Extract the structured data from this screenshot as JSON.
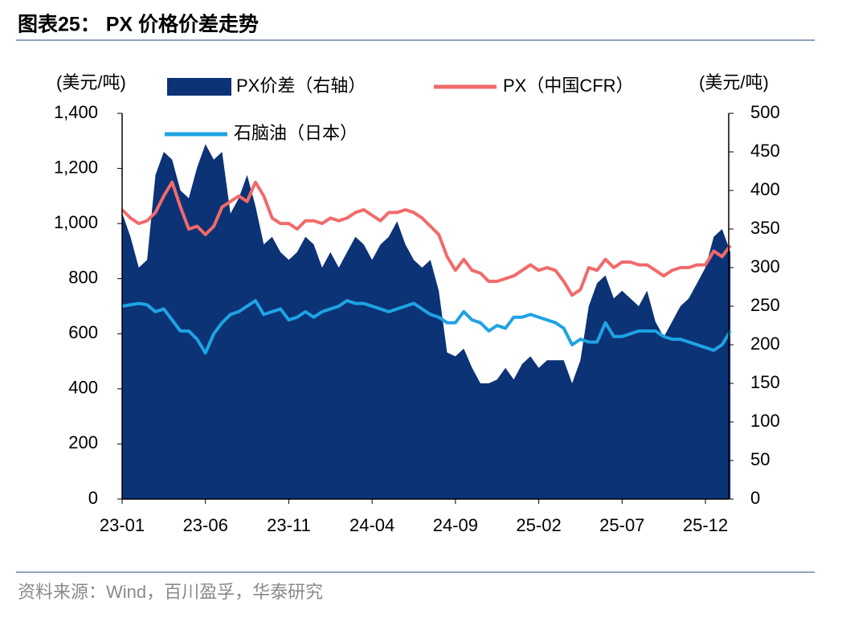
{
  "chart_data": {
    "type": "combo",
    "title": "图表25：  PX 价格价差走势",
    "source": "资料来源：Wind，百川盈孚，华泰研究",
    "y_axis_label": "(美元/吨)",
    "y2_axis_label": "(美元/吨)",
    "legend": "top",
    "grid": false,
    "categories": [
      "23-01",
      null,
      null,
      null,
      null,
      null,
      null,
      null,
      null,
      null,
      "23-06",
      null,
      null,
      null,
      null,
      null,
      null,
      null,
      null,
      null,
      "23-11",
      null,
      null,
      null,
      null,
      null,
      null,
      null,
      null,
      null,
      "24-04",
      null,
      null,
      null,
      null,
      null,
      null,
      null,
      null,
      null,
      "24-09",
      null,
      null,
      null,
      null,
      null,
      null,
      null,
      null,
      null,
      "25-02",
      null,
      null,
      null,
      null,
      null,
      null,
      null,
      null,
      null,
      "25-07",
      null,
      null,
      null,
      null,
      null,
      null,
      null,
      null,
      null,
      "25-12",
      null,
      null,
      null
    ],
    "ylim": [
      0,
      1400
    ],
    "yticks": [
      0,
      200,
      400,
      600,
      800,
      {
        "value": 1000,
        "label": "1,000"
      },
      {
        "value": 1200,
        "label": "1,200"
      },
      {
        "value": 1400,
        "label": "1,400"
      }
    ],
    "y2lim": [
      0,
      500
    ],
    "y2ticks": [
      0,
      50,
      100,
      150,
      200,
      250,
      300,
      350,
      400,
      450,
      500
    ],
    "series": [
      {
        "name": "PX价差（右轴）",
        "type": "area",
        "axis": "y2",
        "color": "#0b3376",
        "values": [
          371,
          340,
          300,
          310,
          420,
          450,
          440,
          400,
          390,
          430,
          460,
          440,
          450,
          370,
          390,
          420,
          380,
          330,
          340,
          320,
          310,
          320,
          340,
          330,
          300,
          320,
          300,
          320,
          340,
          330,
          310,
          330,
          340,
          360,
          330,
          310,
          300,
          310,
          270,
          190,
          185,
          195,
          170,
          150,
          150,
          155,
          170,
          155,
          175,
          185,
          170,
          180,
          180,
          180,
          150,
          180,
          250,
          280,
          290,
          260,
          270,
          260,
          250,
          270,
          230,
          210,
          230,
          250,
          260,
          280,
          300,
          340,
          350,
          320
        ]
      },
      {
        "name": "PX（中国CFR）",
        "type": "line",
        "color": "#f26a6a",
        "values": [
          1050,
          1020,
          1000,
          1010,
          1040,
          1100,
          1150,
          1060,
          980,
          990,
          960,
          990,
          1060,
          1080,
          1100,
          1080,
          1150,
          1100,
          1020,
          1000,
          1000,
          980,
          1010,
          1010,
          1000,
          1020,
          1010,
          1020,
          1040,
          1050,
          1030,
          1010,
          1040,
          1040,
          1050,
          1040,
          1020,
          990,
          960,
          880,
          830,
          870,
          830,
          820,
          790,
          790,
          800,
          810,
          830,
          850,
          830,
          840,
          830,
          790,
          740,
          760,
          840,
          830,
          870,
          840,
          860,
          860,
          850,
          850,
          830,
          810,
          830,
          840,
          840,
          850,
          850,
          900,
          880,
          920
        ]
      },
      {
        "name": "石脑油（日本）",
        "type": "line",
        "color": "#1fa3e3",
        "values": [
          700,
          705,
          710,
          705,
          680,
          690,
          650,
          610,
          610,
          580,
          530,
          600,
          640,
          670,
          680,
          700,
          720,
          670,
          680,
          690,
          650,
          660,
          680,
          660,
          680,
          690,
          700,
          720,
          710,
          710,
          700,
          690,
          680,
          690,
          700,
          710,
          690,
          670,
          660,
          640,
          640,
          680,
          650,
          640,
          610,
          630,
          620,
          660,
          660,
          670,
          660,
          650,
          640,
          620,
          560,
          580,
          570,
          570,
          640,
          590,
          590,
          600,
          610,
          610,
          610,
          590,
          580,
          580,
          570,
          560,
          550,
          540,
          560,
          610
        ]
      }
    ]
  }
}
